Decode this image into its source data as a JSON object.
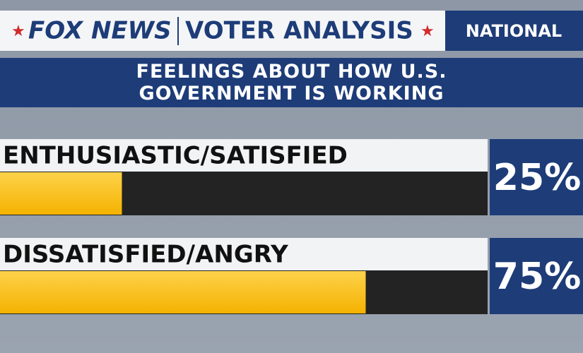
{
  "header": {
    "brand": "FOX NEWS",
    "section": "VOTER ANALYSIS",
    "region": "NATIONAL"
  },
  "chart_data": {
    "type": "bar",
    "orientation": "horizontal",
    "title": "FEELINGS ABOUT HOW U.S. GOVERNMENT IS WORKING",
    "categories": [
      "ENTHUSIASTIC/SATISFIED",
      "DISSATISFIED/ANGRY"
    ],
    "values": [
      25,
      75
    ],
    "value_labels": [
      "25%",
      "75%"
    ],
    "color": "#fcbf1e",
    "xlim": [
      0,
      100
    ]
  }
}
